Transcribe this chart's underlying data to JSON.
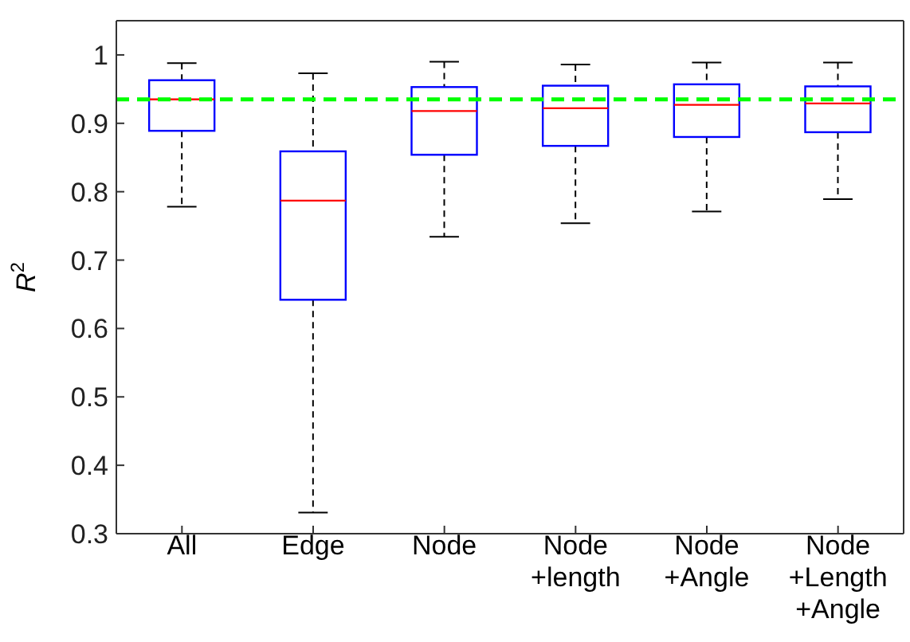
{
  "chart_data": {
    "type": "box",
    "ylabel": "R$^{2}$",
    "categories": [
      "All",
      "Edge",
      "Node",
      "Node\n+length",
      "Node\n+Angle",
      "Node\n+Length\n+Angle"
    ],
    "boxes": [
      {
        "low": 0.778,
        "q1": 0.889,
        "median": 0.935,
        "q3": 0.963,
        "high": 0.988
      },
      {
        "low": 0.331,
        "q1": 0.642,
        "median": 0.787,
        "q3": 0.859,
        "high": 0.973
      },
      {
        "low": 0.734,
        "q1": 0.854,
        "median": 0.918,
        "q3": 0.953,
        "high": 0.99
      },
      {
        "low": 0.754,
        "q1": 0.867,
        "median": 0.922,
        "q3": 0.955,
        "high": 0.986
      },
      {
        "low": 0.771,
        "q1": 0.88,
        "median": 0.927,
        "q3": 0.957,
        "high": 0.989
      },
      {
        "low": 0.789,
        "q1": 0.887,
        "median": 0.929,
        "q3": 0.954,
        "high": 0.989
      }
    ],
    "color": "#0000ff",
    "ylim": [
      0.3,
      1.05
    ],
    "yticks": [
      0.3,
      0.4,
      0.5,
      0.6,
      0.7,
      0.8,
      0.9,
      1
    ],
    "ref_lines": [
      {
        "axis": "y",
        "value": 0.935,
        "color": "#00ff00",
        "line_style": "dashed"
      }
    ],
    "grid": false,
    "legend": false
  }
}
